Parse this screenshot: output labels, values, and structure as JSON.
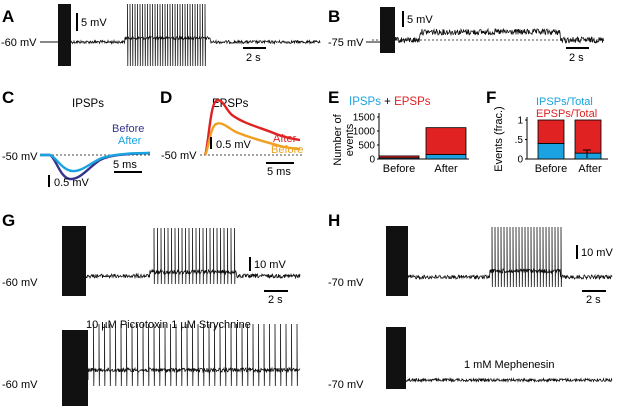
{
  "panels": {
    "A": {
      "letter": "A",
      "scale_v": "5 mV",
      "scale_t": "2 s",
      "baseline": "-60 mV"
    },
    "B": {
      "letter": "B",
      "scale_v": "5 mV",
      "scale_t": "2 s",
      "baseline": "-75 mV"
    },
    "C": {
      "letter": "C",
      "title": "IPSPs",
      "legend_before": "Before",
      "legend_after": "After",
      "baseline": "-50 mV",
      "scale_v": "0.5 mV",
      "scale_t": "5 ms"
    },
    "D": {
      "letter": "D",
      "title": "EPSPs",
      "legend_after": "After",
      "legend_before": "Before",
      "baseline": "-50 mV",
      "scale_v": "0.5 mV",
      "scale_t": "5 ms"
    },
    "E": {
      "letter": "E",
      "title_ipsps": "IPSPs",
      "title_plus": " + ",
      "title_epsps": "EPSPs",
      "ylabel_line1": "Number of",
      "ylabel_line2": "events",
      "yticks": [
        "0",
        "500",
        "1000",
        "1500"
      ],
      "categories": [
        "Before",
        "After"
      ]
    },
    "F": {
      "letter": "F",
      "legend_ipsps": "IPSPs/Total",
      "legend_epsps": "EPSPs/Total",
      "ylabel": "Events (frac.)",
      "yticks": [
        "0",
        ".5",
        "1"
      ],
      "categories": [
        "Before",
        "After"
      ]
    },
    "G": {
      "letter": "G",
      "scale_v": "10 mV",
      "scale_t": "2 s",
      "baseline_top": "-60 mV",
      "baseline_bottom": "-60 mV",
      "drug": "10 µM Picrotoxin  1 µM Strychnine"
    },
    "H": {
      "letter": "H",
      "scale_v": "10 mV",
      "scale_t": "2 s",
      "baseline_top": "-70 mV",
      "baseline_bottom": "-70 mV",
      "drug": "1 mM Mephenesin"
    }
  },
  "colors": {
    "ipsp": "#1aa3e0",
    "epsp": "#e02222",
    "before_ipsp": "#35358f",
    "before_epsp": "#f0a020",
    "trace": "#111111"
  },
  "chart_data": [
    {
      "type": "bar",
      "panel": "E",
      "categories": [
        "Before",
        "After"
      ],
      "series": [
        {
          "name": "IPSPs",
          "values": [
            40,
            160
          ]
        },
        {
          "name": "EPSPs",
          "values": [
            70,
            960
          ]
        }
      ],
      "ylabel": "Number of events",
      "ylim": [
        0,
        1500
      ],
      "stacked": true
    },
    {
      "type": "bar",
      "panel": "F",
      "categories": [
        "Before",
        "After"
      ],
      "series": [
        {
          "name": "IPSPs/Total",
          "values": [
            0.4,
            0.15
          ]
        },
        {
          "name": "EPSPs/Total",
          "values": [
            0.6,
            0.85
          ]
        }
      ],
      "ylabel": "Events (frac.)",
      "ylim": [
        0,
        1
      ],
      "stacked": true
    }
  ]
}
